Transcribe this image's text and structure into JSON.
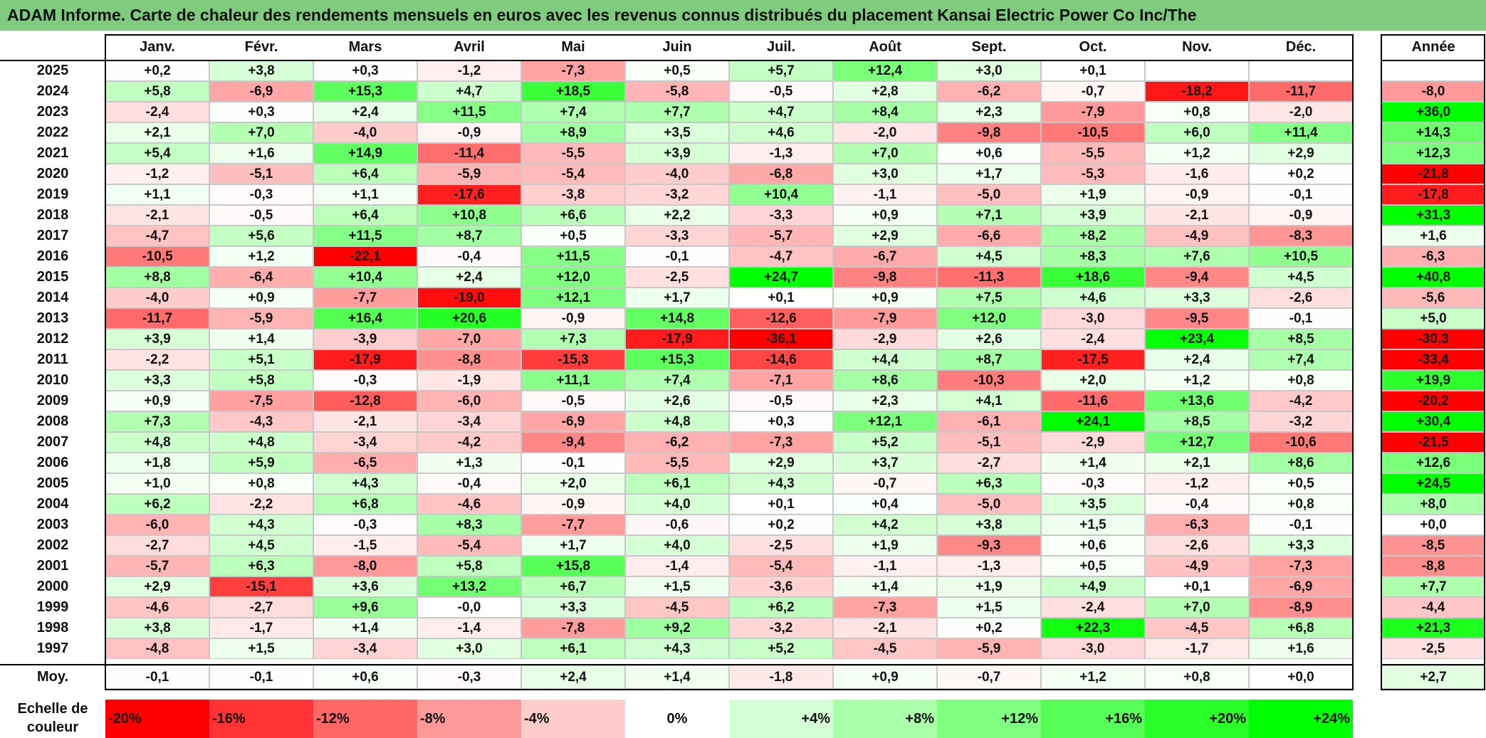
{
  "title": "ADAM Informe. Carte de chaleur des rendements mensuels en euros avec les revenus connus distribués du placement Kansai Electric Power Co Inc/The",
  "chart_data": {
    "type": "heatmap",
    "title": "ADAM Informe. Carte de chaleur des rendements mensuels en euros avec les revenus connus distribués du placement Kansai Electric Power Co Inc/The",
    "months": [
      "Janv.",
      "Févr.",
      "Mars",
      "Avril",
      "Mai",
      "Juin",
      "Juil.",
      "Août",
      "Sept.",
      "Oct.",
      "Nov.",
      "Déc."
    ],
    "year_header": "Année",
    "rows": [
      {
        "year": "2025",
        "values": [
          "+0,2",
          "+3,8",
          "+0,3",
          "-1,2",
          "-7,3",
          "+0,5",
          "+5,7",
          "+12,4",
          "+3,0",
          "+0,1",
          "",
          ""
        ],
        "annual": ""
      },
      {
        "year": "2024",
        "values": [
          "+5,8",
          "-6,9",
          "+15,3",
          "+4,7",
          "+18,5",
          "-5,8",
          "-0,5",
          "+2,8",
          "-6,2",
          "-0,7",
          "-18,2",
          "-11,7"
        ],
        "annual": "-8,0"
      },
      {
        "year": "2023",
        "values": [
          "-2,4",
          "+0,3",
          "+2,4",
          "+11,5",
          "+7,4",
          "+7,7",
          "+4,7",
          "+8,4",
          "+2,3",
          "-7,9",
          "+0,8",
          "-2,0"
        ],
        "annual": "+36,0"
      },
      {
        "year": "2022",
        "values": [
          "+2,1",
          "+7,0",
          "-4,0",
          "-0,9",
          "+8,9",
          "+3,5",
          "+4,6",
          "-2,0",
          "-9,8",
          "-10,5",
          "+6,0",
          "+11,4"
        ],
        "annual": "+14,3"
      },
      {
        "year": "2021",
        "values": [
          "+5,4",
          "+1,6",
          "+14,9",
          "-11,4",
          "-5,5",
          "+3,9",
          "-1,3",
          "+7,0",
          "+0,6",
          "-5,5",
          "+1,2",
          "+2,9"
        ],
        "annual": "+12,3"
      },
      {
        "year": "2020",
        "values": [
          "-1,2",
          "-5,1",
          "+6,4",
          "-5,9",
          "-5,4",
          "-4,0",
          "-6,8",
          "+3,0",
          "+1,7",
          "-5,3",
          "-1,6",
          "+0,2"
        ],
        "annual": "-21,8"
      },
      {
        "year": "2019",
        "values": [
          "+1,1",
          "-0,3",
          "+1,1",
          "-17,6",
          "-3,8",
          "-3,2",
          "+10,4",
          "-1,1",
          "-5,0",
          "+1,9",
          "-0,9",
          "-0,1"
        ],
        "annual": "-17,8"
      },
      {
        "year": "2018",
        "values": [
          "-2,1",
          "-0,5",
          "+6,4",
          "+10,8",
          "+6,6",
          "+2,2",
          "-3,3",
          "+0,9",
          "+7,1",
          "+3,9",
          "-2,1",
          "-0,9"
        ],
        "annual": "+31,3"
      },
      {
        "year": "2017",
        "values": [
          "-4,7",
          "+5,6",
          "+11,5",
          "+8,7",
          "+0,5",
          "-3,3",
          "-5,7",
          "+2,9",
          "-6,6",
          "+8,2",
          "-4,9",
          "-8,3"
        ],
        "annual": "+1,6"
      },
      {
        "year": "2016",
        "values": [
          "-10,5",
          "+1,2",
          "-22,1",
          "-0,4",
          "+11,5",
          "-0,1",
          "-4,7",
          "-6,7",
          "+4,5",
          "+8,3",
          "+7,6",
          "+10,5"
        ],
        "annual": "-6,3"
      },
      {
        "year": "2015",
        "values": [
          "+8,8",
          "-6,4",
          "+10,4",
          "+2,4",
          "+12,0",
          "-2,5",
          "+24,7",
          "-9,8",
          "-11,3",
          "+18,6",
          "-9,4",
          "+4,5"
        ],
        "annual": "+40,8"
      },
      {
        "year": "2014",
        "values": [
          "-4,0",
          "+0,9",
          "-7,7",
          "-19,0",
          "+12,1",
          "+1,7",
          "+0,1",
          "+0,9",
          "+7,5",
          "+4,6",
          "+3,3",
          "-2,6"
        ],
        "annual": "-5,6"
      },
      {
        "year": "2013",
        "values": [
          "-11,7",
          "-5,9",
          "+16,4",
          "+20,6",
          "-0,9",
          "+14,8",
          "-12,6",
          "-7,9",
          "+12,0",
          "-3,0",
          "-9,5",
          "-0,1"
        ],
        "annual": "+5,0"
      },
      {
        "year": "2012",
        "values": [
          "+3,9",
          "+1,4",
          "-3,9",
          "-7,0",
          "+7,3",
          "-17,9",
          "-36,1",
          "-2,9",
          "+2,6",
          "-2,4",
          "+23,4",
          "+8,5"
        ],
        "annual": "-30,3"
      },
      {
        "year": "2011",
        "values": [
          "-2,2",
          "+5,1",
          "-17,9",
          "-8,8",
          "-15,3",
          "+15,3",
          "-14,6",
          "+4,4",
          "+8,7",
          "-17,5",
          "+2,4",
          "+7,4"
        ],
        "annual": "-33,4"
      },
      {
        "year": "2010",
        "values": [
          "+3,3",
          "+5,8",
          "-0,3",
          "-1,9",
          "+11,1",
          "+7,4",
          "-7,1",
          "+8,6",
          "-10,3",
          "+2,0",
          "+1,2",
          "+0,8"
        ],
        "annual": "+19,9"
      },
      {
        "year": "2009",
        "values": [
          "+0,9",
          "-7,5",
          "-12,8",
          "-6,0",
          "-0,5",
          "+2,6",
          "-0,5",
          "+2,3",
          "+4,1",
          "-11,6",
          "+13,6",
          "-4,2"
        ],
        "annual": "-20,2"
      },
      {
        "year": "2008",
        "values": [
          "+7,3",
          "-4,3",
          "-2,1",
          "-3,4",
          "-6,9",
          "+4,8",
          "+0,3",
          "+12,1",
          "-6,1",
          "+24,1",
          "+8,5",
          "-3,2"
        ],
        "annual": "+30,4"
      },
      {
        "year": "2007",
        "values": [
          "+4,8",
          "+4,8",
          "-3,4",
          "-4,2",
          "-9,4",
          "-6,2",
          "-7,3",
          "+5,2",
          "-5,1",
          "-2,9",
          "+12,7",
          "-10,6"
        ],
        "annual": "-21,5"
      },
      {
        "year": "2006",
        "values": [
          "+1,8",
          "+5,9",
          "-6,5",
          "+1,3",
          "-0,1",
          "-5,5",
          "+2,9",
          "+3,7",
          "-2,7",
          "+1,4",
          "+2,1",
          "+8,6"
        ],
        "annual": "+12,6"
      },
      {
        "year": "2005",
        "values": [
          "+1,0",
          "+0,8",
          "+4,3",
          "-0,4",
          "+2,0",
          "+6,1",
          "+4,3",
          "-0,7",
          "+6,3",
          "-0,3",
          "-1,2",
          "+0,5"
        ],
        "annual": "+24,5"
      },
      {
        "year": "2004",
        "values": [
          "+6,2",
          "-2,2",
          "+6,8",
          "-4,6",
          "-0,9",
          "+4,0",
          "+0,1",
          "+0,4",
          "-5,0",
          "+3,5",
          "-0,4",
          "+0,8"
        ],
        "annual": "+8,0"
      },
      {
        "year": "2003",
        "values": [
          "-6,0",
          "+4,3",
          "-0,3",
          "+8,3",
          "-7,7",
          "-0,6",
          "+0,2",
          "+4,2",
          "+3,8",
          "+1,5",
          "-6,3",
          "-0,1"
        ],
        "annual": "+0,0"
      },
      {
        "year": "2002",
        "values": [
          "-2,7",
          "+4,5",
          "-1,5",
          "-5,4",
          "+1,7",
          "+4,0",
          "-2,5",
          "+1,9",
          "-9,3",
          "+0,6",
          "-2,6",
          "+3,3"
        ],
        "annual": "-8,5"
      },
      {
        "year": "2001",
        "values": [
          "-5,7",
          "+6,3",
          "-8,0",
          "+5,8",
          "+15,8",
          "-1,4",
          "-5,4",
          "-1,1",
          "-1,3",
          "+0,5",
          "-4,9",
          "-7,3"
        ],
        "annual": "-8,8"
      },
      {
        "year": "2000",
        "values": [
          "+2,9",
          "-15,1",
          "+3,6",
          "+13,2",
          "+6,7",
          "+1,5",
          "-3,6",
          "+1,4",
          "+1,9",
          "+4,9",
          "+0,1",
          "-6,9"
        ],
        "annual": "+7,7"
      },
      {
        "year": "1999",
        "values": [
          "-4,6",
          "-2,7",
          "+9,6",
          "-0,0",
          "+3,3",
          "-4,5",
          "+6,2",
          "-7,3",
          "+1,5",
          "-2,4",
          "+7,0",
          "-8,9"
        ],
        "annual": "-4,4"
      },
      {
        "year": "1998",
        "values": [
          "+3,8",
          "-1,7",
          "+1,4",
          "-1,4",
          "-7,8",
          "+9,2",
          "-3,2",
          "-2,1",
          "+0,2",
          "+22,3",
          "-4,5",
          "+6,8"
        ],
        "annual": "+21,3"
      },
      {
        "year": "1997",
        "values": [
          "-4,8",
          "+1,5",
          "-3,4",
          "+3,0",
          "+6,1",
          "+4,3",
          "+5,2",
          "-4,5",
          "-5,9",
          "-3,0",
          "-1,7",
          "+1,6"
        ],
        "annual": "-2,5"
      }
    ],
    "average": {
      "label": "Moy.",
      "values": [
        "-0,1",
        "-0,1",
        "+0,6",
        "-0,3",
        "+2,4",
        "+1,4",
        "-1,8",
        "+0,9",
        "-0,7",
        "+1,2",
        "+0,8",
        "+0,0"
      ],
      "annual": "+2,7"
    },
    "scale": {
      "label": "Echelle de couleur",
      "steps": [
        "-20%",
        "-16%",
        "-12%",
        "-8%",
        "-4%",
        "0%",
        "+4%",
        "+8%",
        "+12%",
        "+16%",
        "+20%",
        "+24%"
      ],
      "step_values": [
        -20,
        -16,
        -12,
        -8,
        -4,
        0,
        4,
        8,
        12,
        16,
        20,
        24
      ]
    },
    "colors": {
      "negative_max": "#ff0000",
      "neutral": "#ffffff",
      "positive_max": "#00ff00",
      "title_bar": "#7fcc7f"
    }
  }
}
